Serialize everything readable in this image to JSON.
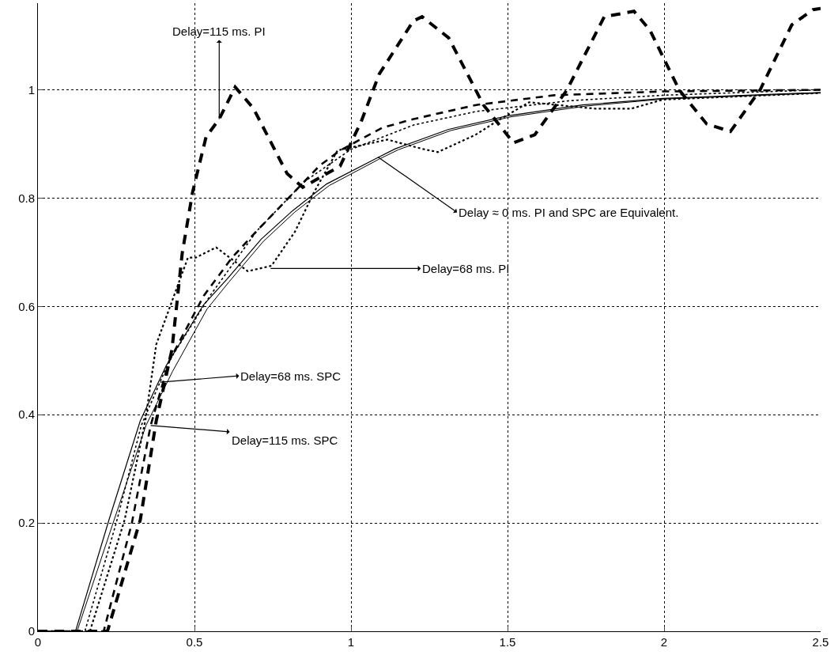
{
  "chart_data": {
    "type": "line",
    "xlim": [
      0,
      2.5
    ],
    "ylim": [
      0,
      1.16
    ],
    "xticks": [
      0,
      0.5,
      1,
      1.5,
      2,
      2.5
    ],
    "yticks": [
      0,
      {
        "value": 0.2,
        "label": "0.2"
      },
      {
        "value": 0.4,
        "label": "0.4"
      },
      {
        "value": 0.6,
        "label": "0.6"
      },
      {
        "value": 0.8,
        "label": "0.8"
      },
      1
    ],
    "grid": true,
    "marker": "none",
    "series": [
      {
        "color": "#000000",
        "line_style": "solid",
        "x": [
          0,
          0.12,
          0.227,
          0.327,
          0.41,
          0.529,
          0.605,
          0.713,
          0.814,
          0.922,
          1.083,
          1.141,
          1.312,
          1.501,
          1.74,
          1.997,
          2.5
        ],
        "values": [
          0,
          0,
          0.206,
          0.389,
          0.491,
          0.603,
          0.651,
          0.724,
          0.777,
          0.826,
          0.874,
          0.891,
          0.927,
          0.952,
          0.972,
          0.984,
          0.995
        ]
      },
      {
        "color": "#000000",
        "line_style": "solid",
        "x": [
          0,
          0.125,
          0.24,
          0.345,
          0.43,
          0.54,
          0.61,
          0.72,
          0.82,
          0.93,
          1.09,
          1.15,
          1.32,
          1.51,
          1.75,
          2.0,
          2.5
        ],
        "values": [
          0,
          0,
          0.2,
          0.38,
          0.48,
          0.595,
          0.645,
          0.72,
          0.774,
          0.823,
          0.872,
          0.889,
          0.925,
          0.95,
          0.97,
          0.983,
          0.994
        ]
      },
      {
        "color": "#000000",
        "line_style": "dotted",
        "x": [
          0,
          0.15,
          0.25,
          0.33,
          0.42,
          0.55,
          0.7,
          0.85,
          1.0,
          1.2,
          1.4,
          1.7,
          2.0,
          2.5
        ],
        "values": [
          0,
          0,
          0.2,
          0.38,
          0.5,
          0.62,
          0.74,
          0.83,
          0.89,
          0.935,
          0.96,
          0.98,
          0.99,
          1.0
        ]
      },
      {
        "color": "#000000",
        "line_style": "dotted",
        "x": [
          0,
          0.166,
          0.277,
          0.343,
          0.378,
          0.479,
          0.504,
          0.569,
          0.67,
          0.746,
          0.821,
          0.882,
          0.957,
          1.116,
          1.227,
          1.277,
          1.398,
          1.466,
          1.569,
          1.783,
          1.894,
          1.997,
          2.5
        ],
        "values": [
          0,
          0,
          0.206,
          0.389,
          0.53,
          0.69,
          0.69,
          0.709,
          0.665,
          0.675,
          0.738,
          0.811,
          0.888,
          0.908,
          0.891,
          0.885,
          0.917,
          0.942,
          0.977,
          0.965,
          0.965,
          0.982,
          0.994
        ]
      },
      {
        "color": "#000000",
        "line_style": "dashed",
        "x": [
          0,
          0.222,
          0.327,
          0.378,
          0.428,
          0.461,
          0.494,
          0.537,
          0.579,
          0.63,
          0.688,
          0.796,
          0.846,
          0.965,
          1.033,
          1.09,
          1.199,
          1.227,
          1.312,
          1.423,
          1.519,
          1.587,
          1.69,
          1.809,
          1.904,
          1.955,
          2.048,
          2.136,
          2.212,
          2.307,
          2.408,
          2.476,
          2.5
        ],
        "values": [
          0,
          0,
          0.206,
          0.389,
          0.52,
          0.699,
          0.811,
          0.913,
          0.946,
          1.005,
          0.966,
          0.845,
          0.82,
          0.859,
          0.942,
          1.029,
          1.127,
          1.135,
          1.096,
          0.972,
          0.902,
          0.917,
          1.0,
          1.135,
          1.145,
          1.11,
          1.0,
          0.937,
          0.923,
          1.0,
          1.12,
          1.148,
          1.15
        ]
      },
      {
        "color": "#000000",
        "line_style": "dashed",
        "x": [
          0,
          0.21,
          0.3,
          0.36,
          0.42,
          0.53,
          0.62,
          0.7,
          0.8,
          0.9,
          0.965,
          1.1,
          1.2,
          1.4,
          1.65,
          2.0,
          2.5
        ],
        "values": [
          0,
          0,
          0.2,
          0.38,
          0.5,
          0.62,
          0.69,
          0.74,
          0.8,
          0.86,
          0.888,
          0.93,
          0.946,
          0.972,
          0.99,
          0.997,
          1.0
        ]
      }
    ],
    "annotations": [
      {
        "text": "Delay=115 ms. PI",
        "x": 0.579,
        "y": 0.946
      },
      {
        "text": "Delay ≈ 0 ms. PI and SPC are Equivalent.",
        "x": 1.086,
        "y": 0.876
      },
      {
        "text": "Delay=68 ms. PI",
        "x": 0.743,
        "y": 0.67
      },
      {
        "text": "Delay=68 ms. SPC",
        "x": 0.39,
        "y": 0.46
      },
      {
        "text": "Delay=115 ms. SPC",
        "x": 0.36,
        "y": 0.38
      }
    ]
  }
}
